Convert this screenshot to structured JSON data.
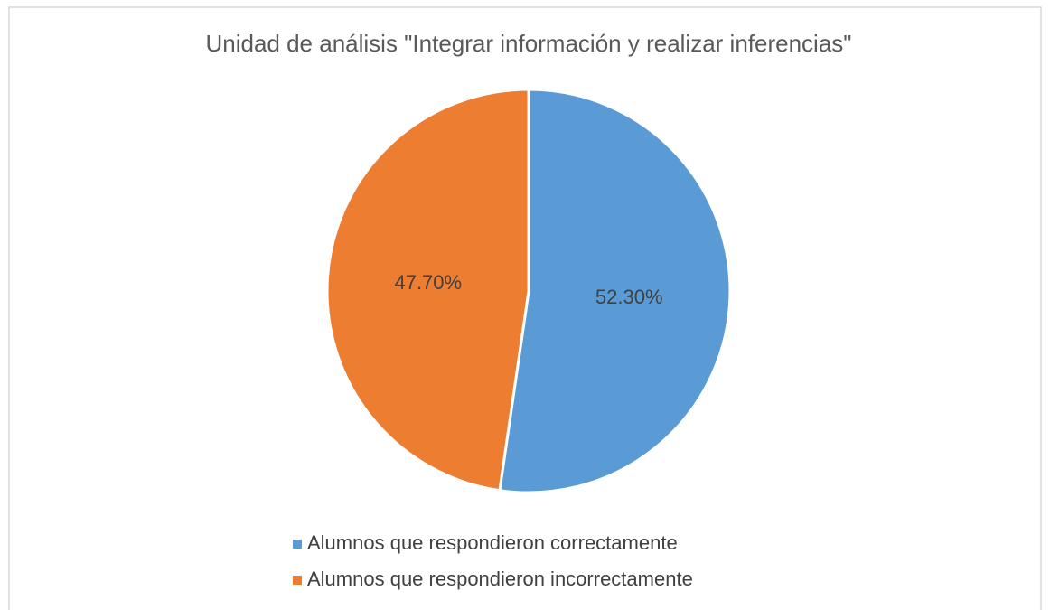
{
  "chart_data": {
    "type": "pie",
    "title": "Unidad de análisis \"Integrar información y realizar inferencias\"",
    "categories": [
      "Alumnos que respondieron correctamente",
      "Alumnos que respondieron incorrectamente"
    ],
    "values": [
      52.3,
      47.7
    ],
    "value_labels": [
      "52.30%",
      "47.70%"
    ],
    "colors": [
      "#5b9bd5",
      "#ed7d31"
    ],
    "legend": "bottom"
  }
}
